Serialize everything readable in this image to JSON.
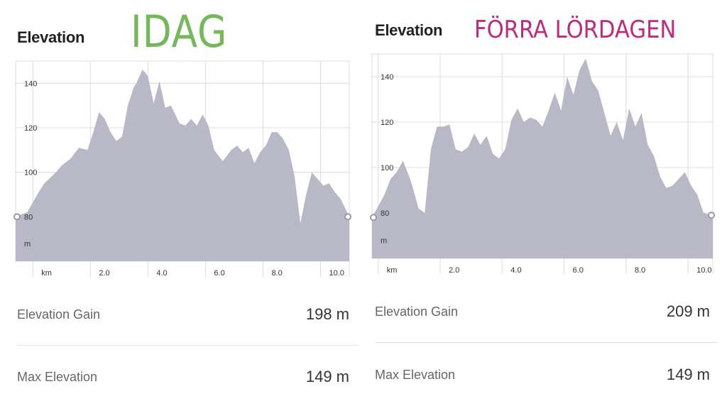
{
  "chart_data": [
    {
      "type": "area",
      "heading": "Elevation",
      "tag": "IDAG",
      "tag_color": "#74b85a",
      "area_color": "#b9b8c6",
      "xlim": [
        -0.6,
        11.0
      ],
      "ylim": [
        60,
        150
      ],
      "x_ticks": [
        "km",
        "2.0",
        "4.0",
        "6.0",
        "8.0",
        "10.0"
      ],
      "x_tick_values": [
        0,
        2,
        4,
        6,
        8,
        10
      ],
      "y_ticks": [
        "m",
        "80",
        "100",
        "120",
        "140"
      ],
      "y_tick_values": [
        68,
        80,
        100,
        120,
        140
      ],
      "grid": true,
      "x": [
        -0.6,
        -0.2,
        0.2,
        0.4,
        0.8,
        1.0,
        1.3,
        1.6,
        1.9,
        2.1,
        2.3,
        2.5,
        2.7,
        2.9,
        3.1,
        3.3,
        3.5,
        3.6,
        3.8,
        3.9,
        4.0,
        4.2,
        4.4,
        4.6,
        4.8,
        5.1,
        5.3,
        5.5,
        5.7,
        5.9,
        6.1,
        6.3,
        6.6,
        6.9,
        7.1,
        7.3,
        7.5,
        7.7,
        7.9,
        8.1,
        8.3,
        8.5,
        8.7,
        8.9,
        9.1,
        9.3,
        9.5,
        9.7,
        9.9,
        10.1,
        10.3,
        10.5,
        10.7,
        11.0
      ],
      "y": [
        80,
        82,
        91,
        95,
        100,
        103,
        106,
        111,
        110,
        118,
        127,
        124,
        118,
        114,
        116,
        130,
        138,
        140,
        146,
        145,
        143,
        131,
        141,
        129,
        130,
        122,
        121,
        124,
        121,
        126,
        121,
        110,
        105,
        110,
        112,
        109,
        111,
        104,
        109,
        112,
        118,
        118,
        115,
        110,
        98,
        77,
        90,
        100,
        97,
        94,
        95,
        91,
        88,
        80
      ],
      "stats": [
        {
          "label": "Elevation Gain",
          "value": "198 m"
        },
        {
          "label": "Max Elevation",
          "value": "149 m"
        }
      ]
    },
    {
      "type": "area",
      "heading": "Elevation",
      "tag": "FÖRRA LÖRDAGEN",
      "tag_color": "#c02a78",
      "area_color": "#b9b8c6",
      "xlim": [
        -0.2,
        10.8
      ],
      "ylim": [
        60,
        150
      ],
      "x_ticks": [
        "km",
        "2.0",
        "4.0",
        "6.0",
        "8.0",
        "10.0"
      ],
      "x_tick_values": [
        0,
        2,
        4,
        6,
        8,
        10
      ],
      "y_ticks": [
        "m",
        "80",
        "100",
        "120",
        "140"
      ],
      "y_tick_values": [
        68,
        80,
        100,
        120,
        140
      ],
      "grid": true,
      "x": [
        -0.2,
        0.2,
        0.4,
        0.6,
        0.8,
        1.0,
        1.1,
        1.3,
        1.5,
        1.7,
        1.9,
        2.1,
        2.3,
        2.5,
        2.7,
        2.9,
        3.1,
        3.3,
        3.5,
        3.7,
        3.9,
        4.1,
        4.3,
        4.5,
        4.7,
        4.9,
        5.1,
        5.3,
        5.5,
        5.7,
        5.9,
        6.1,
        6.3,
        6.5,
        6.7,
        6.9,
        7.1,
        7.3,
        7.5,
        7.7,
        7.9,
        8.1,
        8.3,
        8.5,
        8.7,
        8.9,
        9.1,
        9.3,
        9.5,
        9.7,
        9.9,
        10.1,
        10.3,
        10.5,
        10.8
      ],
      "y": [
        78,
        88,
        95,
        98,
        103,
        96,
        92,
        82,
        80,
        108,
        118,
        118,
        119,
        108,
        107,
        109,
        115,
        110,
        114,
        106,
        104,
        108,
        121,
        126,
        120,
        122,
        121,
        118,
        125,
        133,
        125,
        140,
        132,
        143,
        148,
        138,
        134,
        124,
        114,
        120,
        112,
        126,
        118,
        124,
        110,
        105,
        96,
        91,
        92,
        95,
        98,
        92,
        88,
        80,
        79
      ],
      "stats": [
        {
          "label": "Elevation Gain",
          "value": "209 m"
        },
        {
          "label": "Max Elevation",
          "value": "149 m"
        }
      ]
    }
  ]
}
